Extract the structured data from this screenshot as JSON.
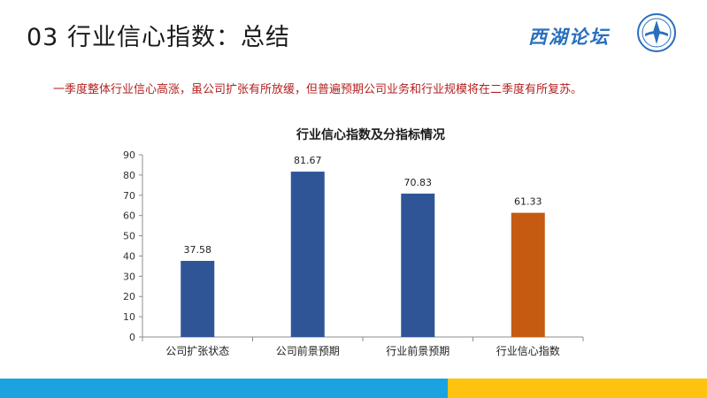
{
  "slide": {
    "title": "03 行业信心指数：总结",
    "brand": "西湖论坛",
    "summary": "一季度整体行业信心高涨，虽公司扩张有所放缓，但普遍预期公司业务和行业规模将在二季度有所复苏。"
  },
  "colors": {
    "bar_blue": "#2f5597",
    "bar_orange": "#c55a11",
    "summary_red": "#b32020",
    "footer_blue": "#1aa3e0",
    "footer_yellow": "#ffc20e"
  },
  "chart_data": {
    "type": "bar",
    "title": "行业信心指数及分指标情况",
    "categories": [
      "公司扩张状态",
      "公司前景预期",
      "行业前景预期",
      "行业信心指数"
    ],
    "values": [
      37.58,
      81.67,
      70.83,
      61.33
    ],
    "labels": [
      "37.58",
      "81.67",
      "70.83",
      "61.33"
    ],
    "bar_colors": [
      "#2f5597",
      "#2f5597",
      "#2f5597",
      "#c55a11"
    ],
    "ylim": [
      0,
      90
    ],
    "yticks": [
      0,
      10,
      20,
      30,
      40,
      50,
      60,
      70,
      80,
      90
    ],
    "xlabel": "",
    "ylabel": "",
    "grid": false,
    "legend": "none"
  }
}
